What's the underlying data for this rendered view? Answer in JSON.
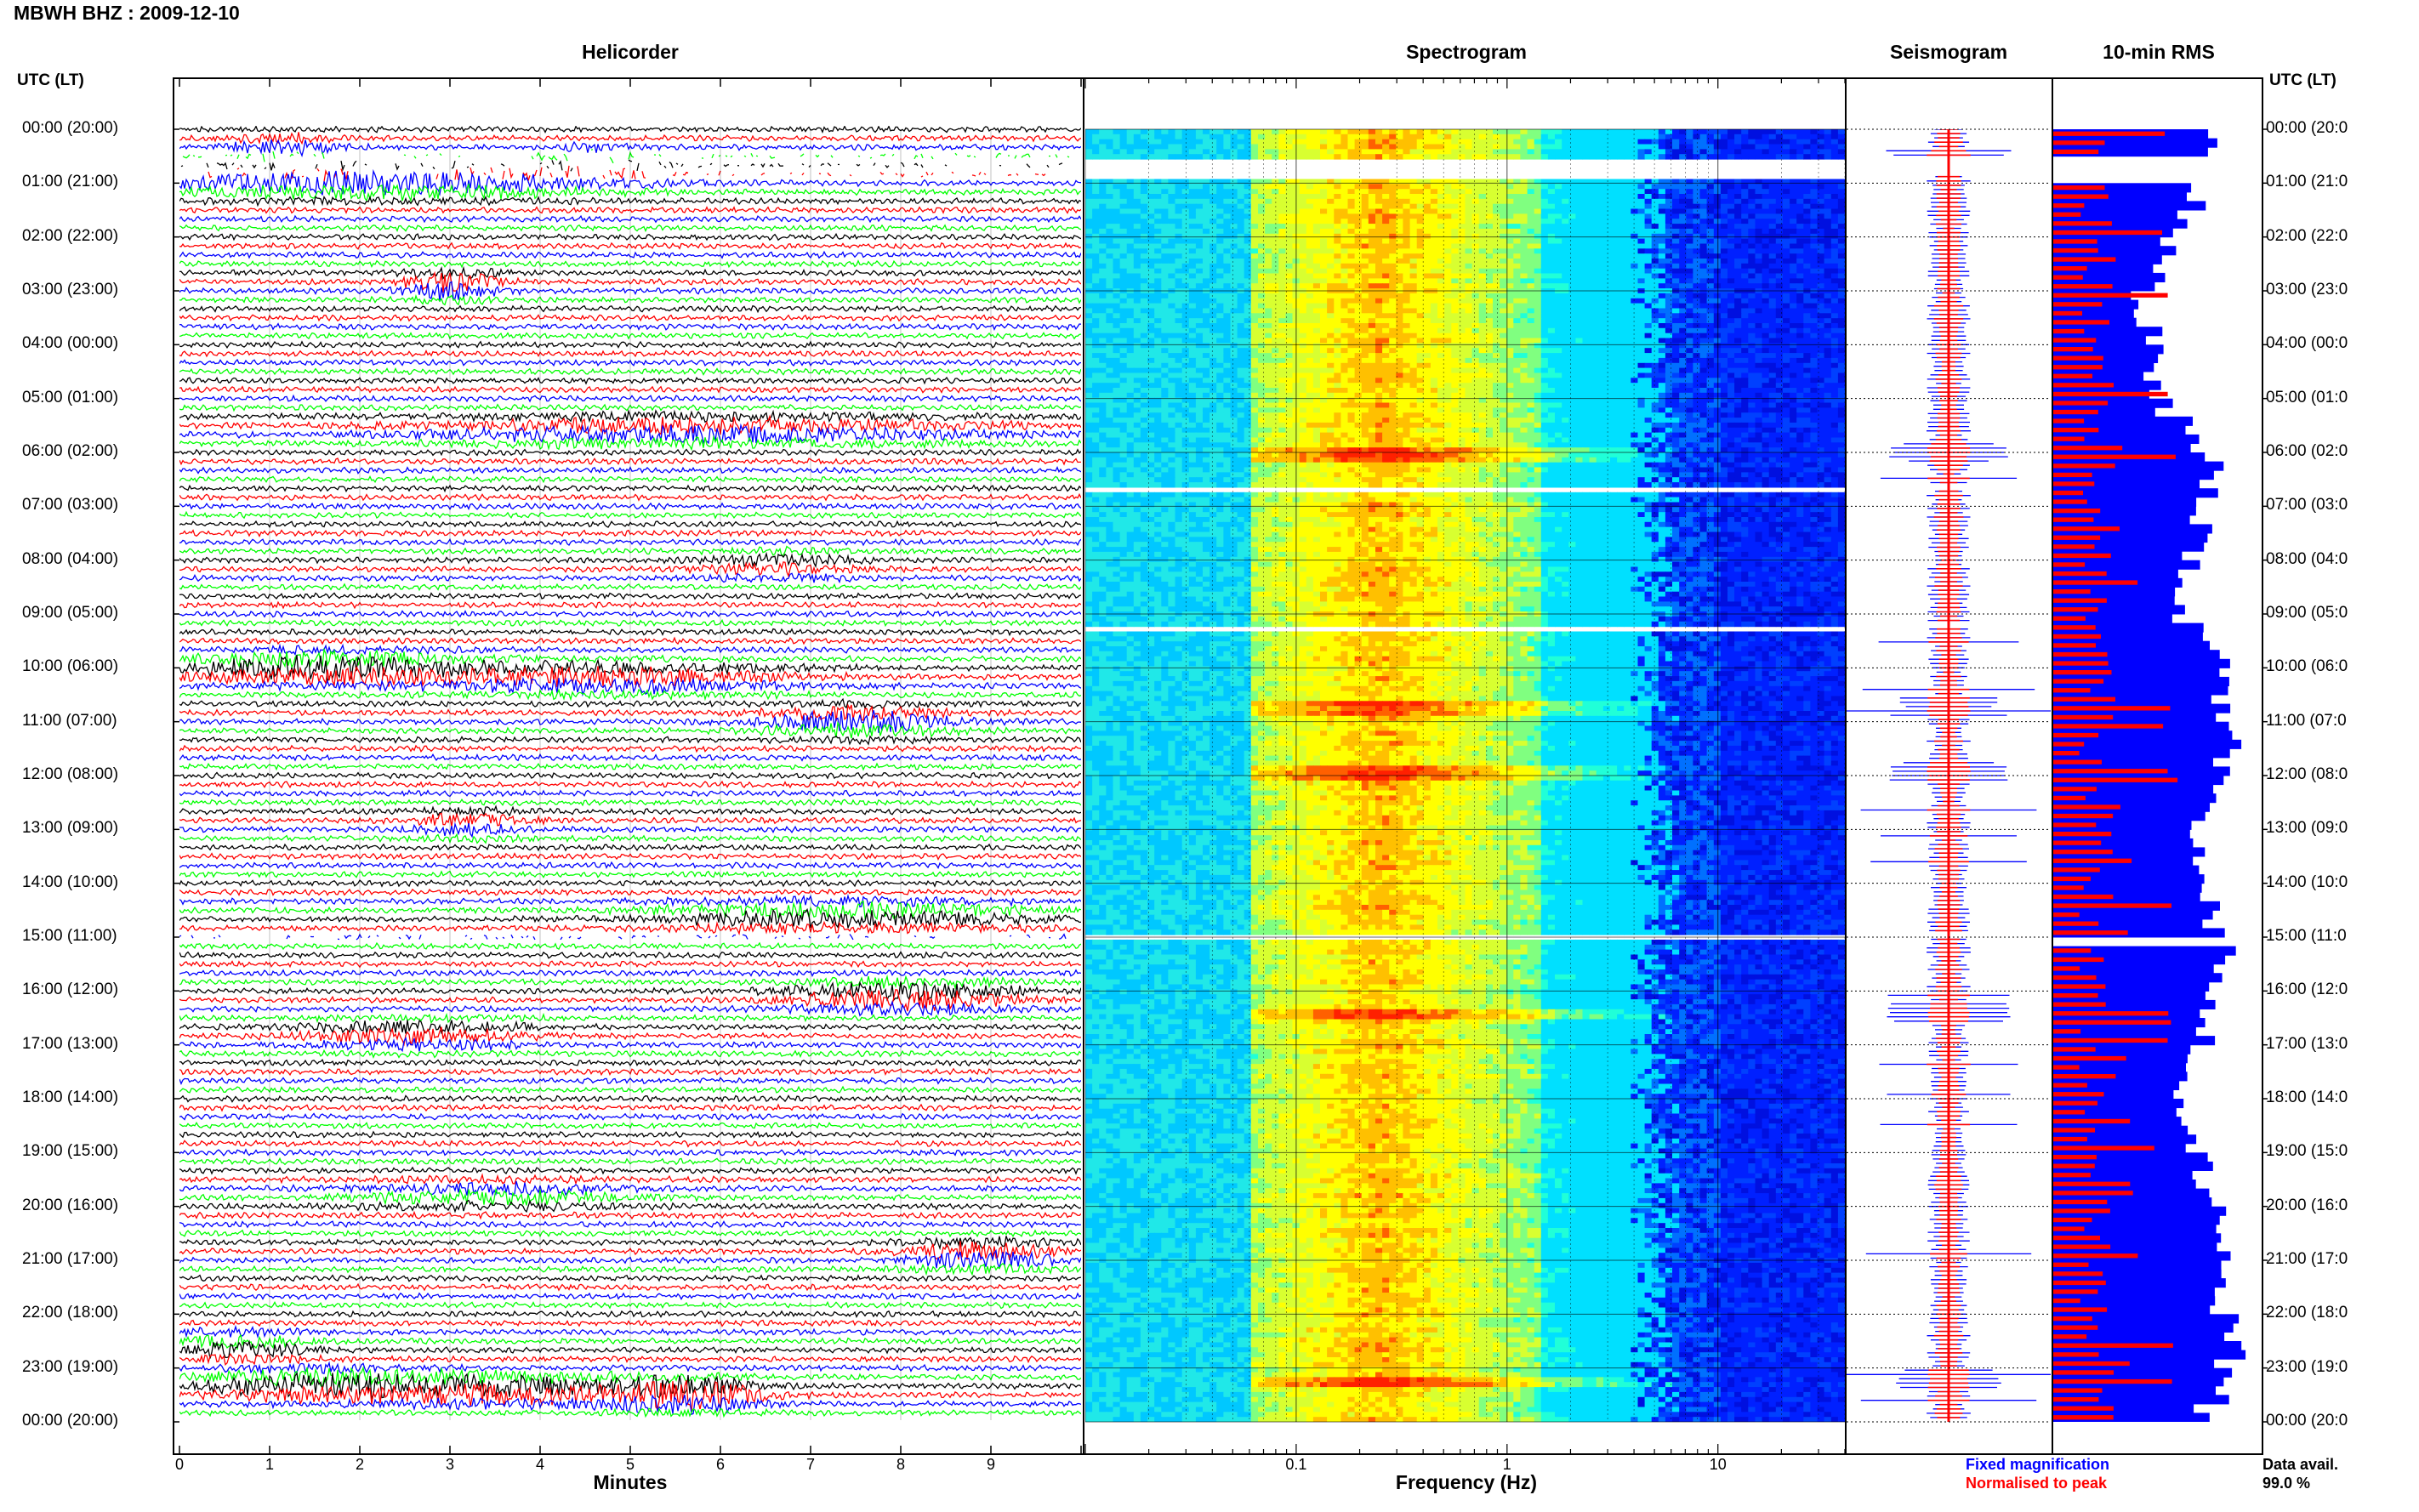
{
  "chart_data": {
    "type": "helicorder-spectrogram",
    "title": "MBWH BHZ : 2009-12-10",
    "panels": [
      "Helicorder",
      "Spectrogram",
      "Seismogram",
      "10-min RMS"
    ],
    "time_axis_label": "UTC (LT)",
    "time_labels": [
      "00:00 (20:00)",
      "01:00 (21:00)",
      "02:00 (22:00)",
      "03:00 (23:00)",
      "04:00 (00:00)",
      "05:00 (01:00)",
      "06:00 (02:00)",
      "07:00 (03:00)",
      "08:00 (04:00)",
      "09:00 (05:00)",
      "10:00 (06:00)",
      "11:00 (07:00)",
      "12:00 (08:00)",
      "13:00 (09:00)",
      "14:00 (10:00)",
      "15:00 (11:00)",
      "16:00 (12:00)",
      "17:00 (13:00)",
      "18:00 (14:00)",
      "19:00 (15:00)",
      "20:00 (16:00)",
      "21:00 (17:00)",
      "22:00 (18:00)",
      "23:00 (19:00)",
      "00:00 (20:00)"
    ],
    "time_labels_right": [
      "00:00 (20:0",
      "01:00 (21:0",
      "02:00 (22:0",
      "03:00 (23:0",
      "04:00 (00:0",
      "05:00 (01:0",
      "06:00 (02:0",
      "07:00 (03:0",
      "08:00 (04:0",
      "09:00 (05:0",
      "10:00 (06:0",
      "11:00 (07:0",
      "12:00 (08:0",
      "13:00 (09:0",
      "14:00 (10:0",
      "15:00 (11:0",
      "16:00 (12:0",
      "17:00 (13:0",
      "18:00 (14:0",
      "19:00 (15:0",
      "20:00 (16:0",
      "21:00 (17:0",
      "22:00 (18:0",
      "23:00 (19:0",
      "00:00 (20:0"
    ],
    "helicorder": {
      "xlabel": "Minutes",
      "x_ticks": [
        "0",
        "1",
        "2",
        "3",
        "4",
        "5",
        "6",
        "7",
        "8",
        "9"
      ],
      "xlim": [
        0,
        10
      ],
      "trace_colors": [
        "#000000",
        "#ff0000",
        "#0000ff",
        "#00ff00"
      ],
      "rows": 144,
      "gaps": [
        [
          0.5,
          0.85
        ],
        [
          6.6,
          6.65
        ],
        [
          9.2,
          9.25
        ],
        [
          14.9,
          15.0
        ]
      ],
      "events": [
        {
          "hour": 0.35,
          "minute": 1.2,
          "amp": 3.0,
          "width": 0.6
        },
        {
          "hour": 0.6,
          "minute": 4.6,
          "amp": 4.0,
          "width": 0.5
        },
        {
          "hour": 1.0,
          "minute": 2.2,
          "amp": 4.5,
          "width": 2.5
        },
        {
          "hour": 2.9,
          "minute": 3.0,
          "amp": 5.0,
          "width": 0.5
        },
        {
          "hour": 5.6,
          "minute": 5.8,
          "amp": 4.0,
          "width": 3.0
        },
        {
          "hour": 8.1,
          "minute": 6.7,
          "amp": 2.5,
          "width": 0.8
        },
        {
          "hour": 10.0,
          "minute": 1.6,
          "amp": 5.0,
          "width": 1.5
        },
        {
          "hour": 10.2,
          "minute": 4.7,
          "amp": 4.0,
          "width": 2.0
        },
        {
          "hour": 11.0,
          "minute": 7.5,
          "amp": 4.5,
          "width": 1.0
        },
        {
          "hour": 12.9,
          "minute": 3.2,
          "amp": 3.0,
          "width": 0.6
        },
        {
          "hour": 14.6,
          "minute": 7.3,
          "amp": 4.0,
          "width": 2.0
        },
        {
          "hour": 16.1,
          "minute": 8.0,
          "amp": 5.0,
          "width": 1.2
        },
        {
          "hour": 16.8,
          "minute": 2.6,
          "amp": 3.5,
          "width": 1.2
        },
        {
          "hour": 19.8,
          "minute": 3.5,
          "amp": 3.0,
          "width": 1.5
        },
        {
          "hour": 20.9,
          "minute": 8.9,
          "amp": 4.5,
          "width": 0.8
        },
        {
          "hour": 22.6,
          "minute": 0.6,
          "amp": 3.5,
          "width": 0.8
        },
        {
          "hour": 23.3,
          "minute": 1.5,
          "amp": 5.0,
          "width": 1.2
        },
        {
          "hour": 23.4,
          "minute": 3.6,
          "amp": 5.0,
          "width": 1.4
        },
        {
          "hour": 23.5,
          "minute": 5.6,
          "amp": 6.0,
          "width": 0.8
        }
      ]
    },
    "spectrogram": {
      "xlabel": "Frequency (Hz)",
      "x_ticks": [
        "0.1",
        "1",
        "10"
      ],
      "x_scale": "log",
      "xlim": [
        0.01,
        40
      ],
      "colormap": [
        "#00ffff",
        "#40ffc0",
        "#c0ff40",
        "#ffff00",
        "#ffa000",
        "#ff2000",
        "#0000ff",
        "#0018ff",
        "#0050ff"
      ],
      "band_peak_hz": 0.25,
      "strong_rows_hours": [
        0.6,
        6.0,
        10.7,
        11.9,
        16.4,
        23.2
      ]
    },
    "seismogram": {
      "legend": [
        "Fixed magnification",
        "Normalised to peak"
      ],
      "colors": [
        "#0000ff",
        "#ff0000"
      ]
    },
    "rms": {
      "colors": [
        "#0000ff",
        "#ff0000"
      ],
      "data_avail_label": "Data avail.",
      "data_avail_value": "99.0 %",
      "profile_hours": [
        0,
        1,
        2,
        3,
        4,
        5,
        6,
        7,
        8,
        9,
        10,
        11,
        12,
        13,
        14,
        15,
        16,
        17,
        18,
        19,
        20,
        21,
        22,
        23,
        24
      ],
      "profile_values": [
        0.75,
        0.72,
        0.55,
        0.45,
        0.48,
        0.52,
        0.75,
        0.7,
        0.66,
        0.62,
        0.8,
        0.85,
        0.8,
        0.72,
        0.68,
        0.82,
        0.78,
        0.7,
        0.6,
        0.72,
        0.75,
        0.78,
        0.82,
        0.85,
        0.7
      ]
    }
  }
}
